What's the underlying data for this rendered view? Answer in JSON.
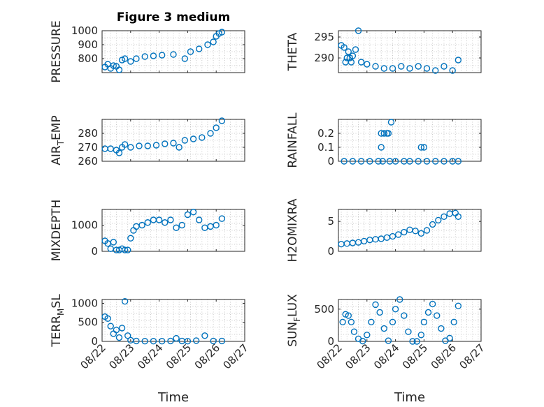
{
  "marker_color": "#0072bd",
  "xticks": [
    "08/22",
    "08/23",
    "08/24",
    "08/25",
    "08/26",
    "08/27"
  ],
  "x_axis_label": "Time",
  "chart_data": [
    {
      "type": "scatter",
      "title": "Figure 3 medium",
      "ylabel": "PRESSURE",
      "ylim": [
        700,
        1000
      ],
      "yticks": [
        800,
        900,
        1000
      ],
      "xlim": [
        0,
        5
      ],
      "x": [
        0.1,
        0.2,
        0.3,
        0.4,
        0.5,
        0.6,
        0.7,
        0.8,
        1.0,
        1.2,
        1.5,
        1.8,
        2.1,
        2.5,
        2.9,
        3.1,
        3.4,
        3.7,
        3.9,
        4.0,
        4.1,
        4.2
      ],
      "y": [
        740,
        760,
        730,
        750,
        745,
        720,
        790,
        800,
        780,
        800,
        815,
        820,
        825,
        830,
        800,
        850,
        870,
        900,
        920,
        960,
        980,
        990
      ]
    },
    {
      "type": "scatter",
      "ylabel": "THETA",
      "ylim": [
        286.5,
        296.5
      ],
      "yticks": [
        290,
        295
      ],
      "xlim": [
        0,
        5
      ],
      "x": [
        0.1,
        0.2,
        0.25,
        0.3,
        0.35,
        0.4,
        0.45,
        0.5,
        0.6,
        0.7,
        0.8,
        1.0,
        1.3,
        1.6,
        1.9,
        2.2,
        2.5,
        2.8,
        3.1,
        3.4,
        3.7,
        4.0,
        4.2
      ],
      "y": [
        293,
        292.5,
        289,
        290,
        291.5,
        290,
        289,
        290.5,
        292,
        296.5,
        289,
        288.5,
        288,
        287.5,
        287.5,
        288,
        287.5,
        288,
        287.5,
        287,
        288,
        287,
        289.5
      ]
    },
    {
      "type": "scatter",
      "ylabel": "AIR_TEMP",
      "ylim": [
        260,
        290
      ],
      "yticks": [
        260,
        270,
        280
      ],
      "xlim": [
        0,
        5
      ],
      "x": [
        0.1,
        0.3,
        0.5,
        0.6,
        0.7,
        0.8,
        1.0,
        1.3,
        1.6,
        1.9,
        2.2,
        2.5,
        2.7,
        2.9,
        3.2,
        3.5,
        3.8,
        4.0,
        4.2
      ],
      "y": [
        269,
        269,
        268,
        266,
        270,
        272,
        270,
        271,
        271,
        271.5,
        272.5,
        273,
        270,
        275,
        276,
        277,
        280,
        284,
        289
      ]
    },
    {
      "type": "scatter",
      "ylabel": "RAINFALL",
      "ylim": [
        0,
        0.3
      ],
      "yticks": [
        0,
        0.1,
        0.2
      ],
      "xlim": [
        0,
        5
      ],
      "x": [
        0.2,
        0.5,
        0.8,
        1.1,
        1.4,
        1.5,
        1.5,
        1.55,
        1.6,
        1.7,
        1.75,
        1.8,
        1.85,
        2.0,
        2.3,
        2.5,
        2.8,
        2.9,
        3.0,
        3.1,
        3.4,
        3.7,
        4.0,
        4.2
      ],
      "y": [
        0,
        0,
        0,
        0,
        0,
        0.1,
        0.2,
        0,
        0.2,
        0.2,
        0.2,
        0,
        0.28,
        0,
        0,
        0,
        0,
        0.1,
        0.1,
        0,
        0,
        0,
        0,
        0
      ]
    },
    {
      "type": "scatter",
      "ylabel": "MIXDEPTH",
      "ylim": [
        0,
        1600
      ],
      "yticks": [
        0,
        1000
      ],
      "xlim": [
        0,
        5
      ],
      "x": [
        0.1,
        0.2,
        0.3,
        0.4,
        0.5,
        0.6,
        0.7,
        0.8,
        0.9,
        1.0,
        1.1,
        1.2,
        1.4,
        1.6,
        1.8,
        2.0,
        2.2,
        2.4,
        2.6,
        2.8,
        3.0,
        3.2,
        3.4,
        3.6,
        3.8,
        4.0,
        4.2
      ],
      "y": [
        400,
        300,
        100,
        350,
        50,
        50,
        100,
        50,
        50,
        500,
        800,
        950,
        1000,
        1100,
        1200,
        1200,
        1100,
        1200,
        900,
        1000,
        1400,
        1500,
        1200,
        900,
        950,
        1000,
        1250
      ]
    },
    {
      "type": "scatter",
      "ylabel": "H2OMIXRA",
      "ylim": [
        0,
        7
      ],
      "yticks": [
        0,
        5
      ],
      "xlim": [
        0,
        5
      ],
      "x": [
        0.1,
        0.3,
        0.5,
        0.7,
        0.9,
        1.1,
        1.3,
        1.5,
        1.7,
        1.9,
        2.1,
        2.3,
        2.5,
        2.7,
        2.9,
        3.1,
        3.3,
        3.5,
        3.7,
        3.9,
        4.1,
        4.2
      ],
      "y": [
        1.2,
        1.3,
        1.4,
        1.5,
        1.7,
        1.9,
        2.0,
        2.1,
        2.3,
        2.5,
        2.8,
        3.2,
        3.6,
        3.4,
        3.0,
        3.5,
        4.5,
        5.2,
        5.8,
        6.3,
        6.4,
        5.8
      ]
    },
    {
      "type": "scatter",
      "ylabel": "TERR_MSL",
      "ylim": [
        0,
        1100
      ],
      "yticks": [
        0,
        500,
        1000
      ],
      "xlim": [
        0,
        5
      ],
      "x": [
        0.1,
        0.2,
        0.3,
        0.4,
        0.5,
        0.6,
        0.7,
        0.8,
        0.9,
        1.0,
        1.2,
        1.5,
        1.8,
        2.1,
        2.4,
        2.6,
        2.8,
        3.0,
        3.3,
        3.6,
        3.9,
        4.2
      ],
      "y": [
        650,
        600,
        400,
        200,
        300,
        100,
        350,
        1050,
        150,
        30,
        10,
        5,
        5,
        5,
        10,
        80,
        10,
        5,
        20,
        150,
        10,
        10
      ]
    },
    {
      "type": "scatter",
      "ylabel": "SUN_FLUX",
      "ylim": [
        0,
        650
      ],
      "yticks": [
        0,
        500
      ],
      "xlim": [
        0,
        5
      ],
      "x": [
        0.15,
        0.25,
        0.35,
        0.45,
        0.55,
        0.7,
        0.85,
        1.0,
        1.15,
        1.3,
        1.45,
        1.6,
        1.75,
        1.9,
        2.0,
        2.15,
        2.3,
        2.45,
        2.6,
        2.75,
        2.9,
        3.0,
        3.15,
        3.3,
        3.45,
        3.6,
        3.75,
        3.9,
        4.05,
        4.2
      ],
      "y": [
        300,
        420,
        400,
        300,
        150,
        40,
        5,
        100,
        300,
        570,
        450,
        200,
        10,
        300,
        500,
        650,
        400,
        150,
        0,
        0,
        100,
        300,
        450,
        580,
        400,
        200,
        10,
        50,
        300,
        550
      ]
    }
  ]
}
